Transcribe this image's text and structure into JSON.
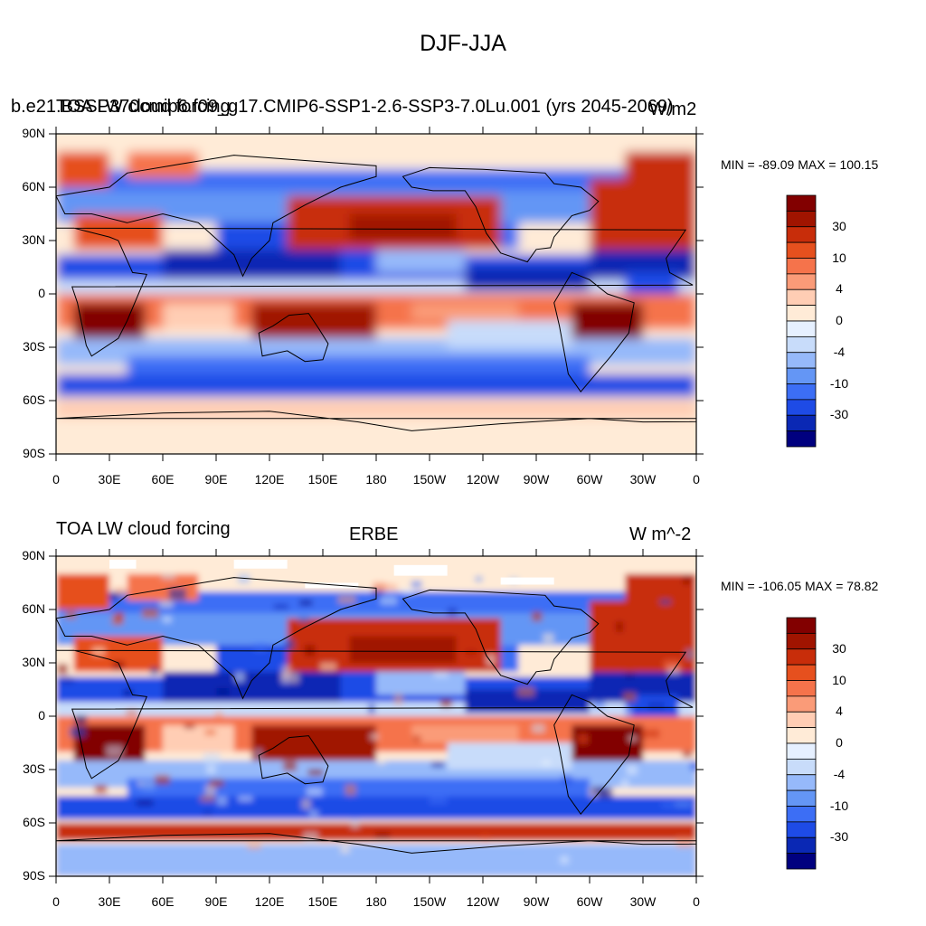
{
  "figure": {
    "title": "DJF-JJA"
  },
  "panels": [
    {
      "left_title_line1": "b.e21.BSSP370cmip6.f09_g17.CMIP6-SSP1-2.6-SSP3-7.0Lu.001 (yrs 2045-2069)",
      "left_title_line2": "TOA LW cloud forcing",
      "right_title": "W/m2",
      "stats": "MIN = -89.09 MAX = 100.15",
      "lat_ticks": [
        "90N",
        "60N",
        "30N",
        "0",
        "30S",
        "60S",
        "90S"
      ],
      "lon_ticks": [
        "0",
        "30E",
        "60E",
        "90E",
        "120E",
        "150E",
        "180",
        "150W",
        "120W",
        "90W",
        "60W",
        "30W",
        "0"
      ],
      "colorbar_labels": [
        "30",
        "10",
        "4",
        "0",
        "-4",
        "-10",
        "-30"
      ]
    },
    {
      "left_title": "TOA LW cloud forcing",
      "center_title": "ERBE",
      "right_title": "W m^-2",
      "stats": "MIN = -106.05 MAX =  78.82",
      "lat_ticks": [
        "90N",
        "60N",
        "30N",
        "0",
        "30S",
        "60S",
        "90S"
      ],
      "lon_ticks": [
        "0",
        "30E",
        "60E",
        "90E",
        "120E",
        "150E",
        "180",
        "150W",
        "120W",
        "90W",
        "60W",
        "30W",
        "0"
      ],
      "colorbar_labels": [
        "30",
        "10",
        "4",
        "0",
        "-4",
        "-10",
        "-30"
      ]
    }
  ],
  "colors": {
    "palette": [
      "#00007f",
      "#0a28b4",
      "#1e4be6",
      "#3c6ef5",
      "#6496f5",
      "#96b9fa",
      "#c8dcfa",
      "#e6f0ff",
      "#ffebd7",
      "#ffcdb4",
      "#fa9b78",
      "#f5734b",
      "#e6501e",
      "#c82d0a",
      "#a01400",
      "#820000"
    ]
  }
}
